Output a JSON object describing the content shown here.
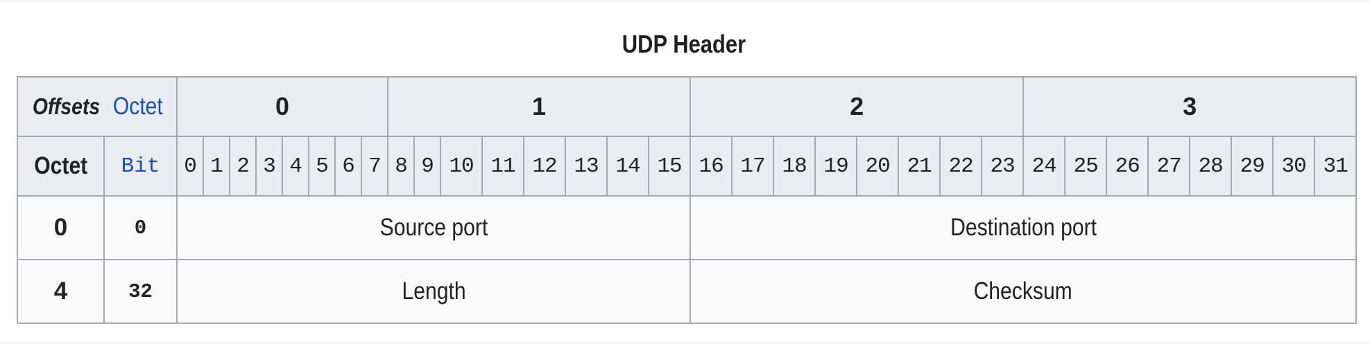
{
  "diagram": {
    "title": "UDP Header",
    "corner": {
      "offsets_label": "Offsets",
      "octet_link_label": "Octet",
      "octet_label": "Octet",
      "bit_label": "Bit"
    },
    "octet_columns": [
      "0",
      "1",
      "2",
      "3"
    ],
    "bit_columns": [
      "0",
      "1",
      "2",
      "3",
      "4",
      "5",
      "6",
      "7",
      "8",
      "9",
      "10",
      "11",
      "12",
      "13",
      "14",
      "15",
      "16",
      "17",
      "18",
      "19",
      "20",
      "21",
      "22",
      "23",
      "24",
      "25",
      "26",
      "27",
      "28",
      "29",
      "30",
      "31"
    ],
    "rows": [
      {
        "octet": "0",
        "bit": "0",
        "fields": [
          {
            "label": "Source port",
            "bits": 16
          },
          {
            "label": "Destination port",
            "bits": 16
          }
        ]
      },
      {
        "octet": "4",
        "bit": "32",
        "fields": [
          {
            "label": "Length",
            "bits": 16
          },
          {
            "label": "Checksum",
            "bits": 16
          }
        ]
      }
    ]
  },
  "colors": {
    "border": "#a2a9b1",
    "header_bg": "#eaecf0",
    "cell_bg": "#f9f9f9",
    "link": "#1a4fb5",
    "text": "#222222"
  }
}
